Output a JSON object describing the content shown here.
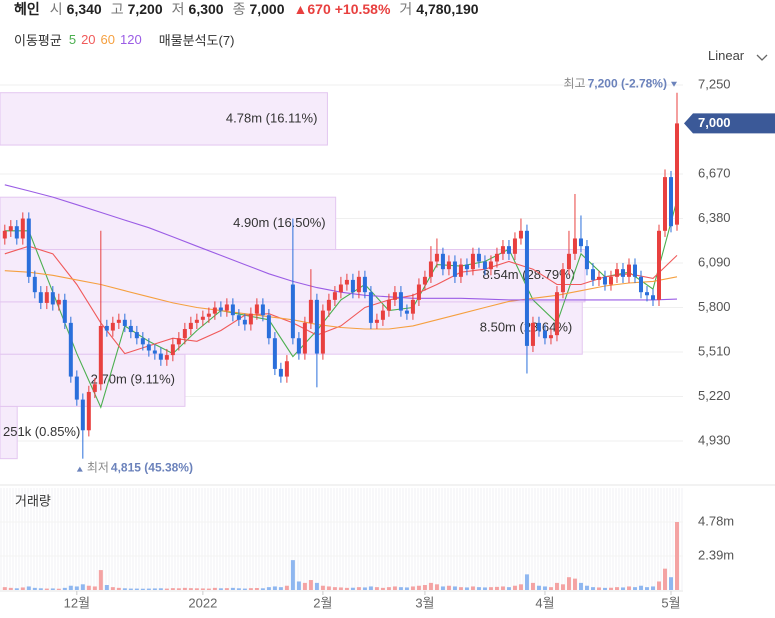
{
  "header": {
    "name": "헤인",
    "items": [
      {
        "label": "시",
        "value": "6,340"
      },
      {
        "label": "고",
        "value": "7,200"
      },
      {
        "label": "저",
        "value": "6,300"
      },
      {
        "label": "종",
        "value": "7,000"
      }
    ],
    "change": "▲670",
    "change_pct": "+10.58%",
    "volume_label": "거",
    "volume": "4,780,190"
  },
  "toolbar": {
    "scale": "Linear"
  },
  "chart_data": [
    {
      "type": "candlestick",
      "legend_title": "이동평균",
      "up_color": "#e8403f",
      "down_color": "#2a6fdb",
      "xlim": [
        -0.8,
        113
      ],
      "ylim": [
        4676,
        7348
      ],
      "yticks": [
        {
          "value": 4930,
          "label": "4,930"
        },
        {
          "value": 5220,
          "label": "5,220"
        },
        {
          "value": 5510,
          "label": "5,510"
        },
        {
          "value": 5800,
          "label": "5,800"
        },
        {
          "value": 6090,
          "label": "6,090"
        },
        {
          "value": 6380,
          "label": "6,380"
        },
        {
          "value": 6670,
          "label": "6,670"
        },
        {
          "value": 7250,
          "label": "7,250"
        }
      ],
      "grid": true,
      "open": [
        6250,
        6300,
        6330,
        6250,
        6380,
        6000,
        5900,
        5830,
        5900,
        5820,
        5850,
        5700,
        5350,
        5200,
        5000,
        5250,
        5300,
        5680,
        5650,
        5700,
        5720,
        5680,
        5640,
        5600,
        5560,
        5520,
        5500,
        5460,
        5490,
        5560,
        5600,
        5660,
        5700,
        5720,
        5740,
        5760,
        5800,
        5780,
        5820,
        5750,
        5720,
        5690,
        5760,
        5820,
        5750,
        5600,
        5400,
        5350,
        5950,
        5600,
        5500,
        5700,
        5850,
        5500,
        5780,
        5850,
        5900,
        5950,
        5980,
        5900,
        6000,
        5900,
        5700,
        5720,
        5780,
        5850,
        5900,
        5780,
        5760,
        5850,
        5950,
        6000,
        6100,
        6150,
        6050,
        6100,
        6000,
        6080,
        6050,
        6150,
        6100,
        6050,
        6100,
        6150,
        6200,
        6150,
        6250,
        6300,
        5550,
        5700,
        5650,
        5600,
        5620,
        5900,
        6050,
        6150,
        6250,
        6200,
        6050,
        5980,
        6000,
        5950,
        6000,
        6050,
        6000,
        6080,
        6000,
        5900,
        5880,
        5850,
        6300,
        6650,
        6340
      ],
      "high": [
        6340,
        6370,
        6370,
        6420,
        6420,
        6040,
        5940,
        5940,
        5940,
        5890,
        5890,
        5740,
        5390,
        5240,
        5290,
        5340,
        6300,
        5720,
        5740,
        5760,
        5760,
        5720,
        5680,
        5640,
        5600,
        5560,
        5540,
        5530,
        5600,
        5640,
        5700,
        5740,
        5760,
        5780,
        5800,
        5840,
        5840,
        5860,
        5860,
        5790,
        5760,
        5800,
        5860,
        5860,
        5790,
        5640,
        5440,
        5490,
        6380,
        5640,
        5740,
        6050,
        5890,
        5820,
        5890,
        5940,
        6000,
        6020,
        6020,
        6040,
        6040,
        5940,
        5760,
        5820,
        5890,
        5940,
        5940,
        5820,
        5890,
        5990,
        6040,
        6200,
        6250,
        6190,
        6140,
        6140,
        6120,
        6120,
        6190,
        6190,
        6140,
        6140,
        6190,
        6240,
        6240,
        6290,
        6380,
        6340,
        5740,
        5740,
        5690,
        5660,
        5940,
        6090,
        6300,
        6540,
        6400,
        6240,
        6090,
        6040,
        6040,
        6040,
        6090,
        6090,
        6120,
        6120,
        6040,
        5940,
        5920,
        6340,
        6700,
        6690,
        7200
      ],
      "low": [
        6210,
        6260,
        6210,
        6210,
        5960,
        5860,
        5790,
        5790,
        5780,
        5780,
        5660,
        5310,
        5160,
        4815,
        4960,
        5210,
        5260,
        5610,
        5610,
        5660,
        5640,
        5600,
        5560,
        5520,
        5480,
        5460,
        5420,
        5420,
        5450,
        5520,
        5560,
        5620,
        5660,
        5680,
        5700,
        5720,
        5740,
        5740,
        5710,
        5680,
        5650,
        5650,
        5720,
        5710,
        5560,
        5360,
        5310,
        5310,
        5560,
        5460,
        5460,
        5660,
        5280,
        5460,
        5740,
        5810,
        5860,
        5910,
        5860,
        5860,
        5860,
        5660,
        5660,
        5680,
        5740,
        5810,
        5740,
        5720,
        5720,
        5810,
        5910,
        5960,
        6060,
        6010,
        6010,
        5960,
        5960,
        6010,
        6010,
        6060,
        6010,
        6010,
        6060,
        6110,
        6110,
        6110,
        6210,
        5370,
        5510,
        5610,
        5560,
        5560,
        5580,
        5860,
        6010,
        6110,
        6160,
        6010,
        5940,
        5940,
        5910,
        5910,
        5960,
        5960,
        5960,
        5960,
        5860,
        5840,
        5810,
        5810,
        6260,
        6290,
        6300
      ],
      "close": [
        6300,
        6330,
        6250,
        6380,
        6000,
        5900,
        5830,
        5900,
        5820,
        5850,
        5700,
        5350,
        5200,
        5000,
        5250,
        5300,
        5680,
        5650,
        5700,
        5720,
        5680,
        5640,
        5600,
        5560,
        5520,
        5500,
        5460,
        5490,
        5560,
        5600,
        5660,
        5700,
        5720,
        5740,
        5760,
        5800,
        5780,
        5820,
        5750,
        5720,
        5690,
        5760,
        5820,
        5750,
        5600,
        5400,
        5350,
        5450,
        5600,
        5500,
        5700,
        5850,
        5500,
        5780,
        5850,
        5900,
        5950,
        5980,
        5900,
        6000,
        5900,
        5700,
        5720,
        5780,
        5850,
        5900,
        5780,
        5760,
        5850,
        5950,
        6000,
        6100,
        6150,
        6050,
        6100,
        6000,
        6080,
        6050,
        6150,
        6100,
        6050,
        6100,
        6150,
        6200,
        6150,
        6250,
        6300,
        5550,
        5700,
        5650,
        5600,
        5620,
        5900,
        6050,
        6150,
        6250,
        6200,
        6050,
        5980,
        6000,
        5950,
        6000,
        6050,
        6000,
        6080,
        6000,
        5900,
        5880,
        5850,
        6300,
        6650,
        6330,
        7000
      ],
      "series": [
        {
          "name": "5",
          "color": "#4caf50",
          "x": [
            0,
            4,
            8,
            12,
            16,
            20,
            24,
            28,
            32,
            36,
            40,
            44,
            48,
            52,
            56,
            60,
            64,
            68,
            72,
            76,
            80,
            84,
            88,
            92,
            96,
            100,
            104,
            108,
            112
          ],
          "values": [
            6300,
            6300,
            5900,
            5500,
            5150,
            5680,
            5580,
            5500,
            5650,
            5780,
            5750,
            5720,
            5480,
            5650,
            5850,
            5950,
            5780,
            5800,
            6080,
            6070,
            6100,
            6180,
            5850,
            5700,
            6150,
            6000,
            6030,
            5920,
            6500
          ]
        },
        {
          "name": "20",
          "color": "#f05a5a",
          "x": [
            0,
            4,
            8,
            12,
            16,
            20,
            24,
            28,
            32,
            36,
            40,
            44,
            48,
            52,
            56,
            60,
            64,
            68,
            72,
            76,
            80,
            84,
            88,
            92,
            96,
            100,
            104,
            108,
            112
          ],
          "values": [
            6150,
            6200,
            6150,
            5950,
            5700,
            5500,
            5550,
            5600,
            5580,
            5650,
            5750,
            5760,
            5700,
            5620,
            5680,
            5800,
            5850,
            5880,
            5950,
            6030,
            6050,
            6100,
            6050,
            5950,
            5950,
            6000,
            6020,
            5990,
            6140
          ]
        },
        {
          "name": "60",
          "color": "#f5a040",
          "x": [
            0,
            4,
            8,
            12,
            16,
            20,
            24,
            28,
            32,
            36,
            40,
            44,
            48,
            52,
            56,
            60,
            64,
            68,
            72,
            76,
            80,
            84,
            88,
            92,
            96,
            100,
            104,
            108,
            112
          ],
          "values": [
            6040,
            6030,
            6010,
            5980,
            5950,
            5910,
            5870,
            5830,
            5800,
            5780,
            5760,
            5740,
            5720,
            5690,
            5670,
            5660,
            5660,
            5680,
            5720,
            5760,
            5800,
            5840,
            5860,
            5880,
            5910,
            5940,
            5960,
            5970,
            6000
          ]
        },
        {
          "name": "120",
          "color": "#9b5de5",
          "x": [
            0,
            4,
            8,
            12,
            16,
            20,
            24,
            28,
            32,
            36,
            40,
            44,
            48,
            52,
            56,
            60,
            64,
            68,
            72,
            76,
            80,
            84,
            88,
            92,
            96,
            100,
            104,
            108,
            112
          ],
          "values": [
            6600,
            6560,
            6520,
            6470,
            6420,
            6370,
            6320,
            6260,
            6200,
            6140,
            6080,
            6020,
            5970,
            5930,
            5900,
            5880,
            5870,
            5860,
            5860,
            5860,
            5855,
            5850,
            5850,
            5850,
            5850,
            5850,
            5850,
            5850,
            5855
          ]
        }
      ],
      "volume_profile": {
        "name": "매물분석도(7)",
        "color": "#f6ebfb",
        "border": "#e3c6f0",
        "bins": [
          4815,
          5156,
          5496,
          5837,
          6178,
          6519,
          6859,
          7200
        ],
        "values": [
          251000,
          2700000,
          8500000,
          8540000,
          4900000,
          0,
          4780000
        ],
        "value_labels": [
          "251k (0.85%)",
          "2.70m (9.11%)",
          "8.50m (28.64%)",
          "8.54m (28.79%)",
          "4.90m (16.50%)",
          null,
          "4.78m (16.11%)"
        ]
      },
      "annotations": [
        {
          "prefix": "최고",
          "label": "7,200 (-2.78%)",
          "x": 112,
          "y": 7200,
          "position": "above"
        },
        {
          "prefix": "최저",
          "label": "4,815 (45.38%)",
          "x": 13,
          "y": 4815,
          "position": "below"
        }
      ],
      "last_price": {
        "value": 7000,
        "label": "7,000",
        "color": "#3b5998"
      }
    },
    {
      "type": "volume",
      "title": "거래량",
      "up_color": "#f4a3a3",
      "down_color": "#8fb7f0",
      "xlim": [
        -0.8,
        113
      ],
      "ylim": [
        0,
        7030000
      ],
      "yticks": [
        {
          "value": 2390000,
          "label": "2.39m"
        },
        {
          "value": 4780000,
          "label": "4.78m"
        }
      ],
      "xticks": [
        {
          "value": 12,
          "label": "12월"
        },
        {
          "value": 33,
          "label": "2022"
        },
        {
          "value": 53,
          "label": "2월"
        },
        {
          "value": 70,
          "label": "3월"
        },
        {
          "value": 90,
          "label": "4월"
        },
        {
          "value": 111,
          "label": "5월"
        }
      ],
      "grid": true,
      "values": [
        200000,
        150000,
        120000,
        180000,
        250000,
        150000,
        120000,
        100000,
        110000,
        90000,
        150000,
        300000,
        250000,
        400000,
        300000,
        250000,
        1400000,
        350000,
        200000,
        150000,
        120000,
        100000,
        100000,
        90000,
        100000,
        110000,
        120000,
        100000,
        130000,
        120000,
        150000,
        130000,
        120000,
        110000,
        100000,
        150000,
        120000,
        130000,
        150000,
        120000,
        100000,
        130000,
        140000,
        120000,
        200000,
        250000,
        200000,
        300000,
        2100000,
        600000,
        500000,
        700000,
        500000,
        300000,
        250000,
        200000,
        180000,
        150000,
        160000,
        200000,
        180000,
        250000,
        200000,
        150000,
        200000,
        250000,
        200000,
        180000,
        250000,
        300000,
        350000,
        500000,
        400000,
        250000,
        300000,
        250000,
        200000,
        180000,
        250000,
        200000,
        180000,
        200000,
        220000,
        250000,
        200000,
        300000,
        400000,
        1100000,
        500000,
        300000,
        250000,
        200000,
        500000,
        400000,
        900000,
        800000,
        500000,
        300000,
        200000,
        180000,
        150000,
        160000,
        200000,
        180000,
        250000,
        200000,
        300000,
        200000,
        250000,
        600000,
        1500000,
        900000,
        4780190
      ]
    }
  ]
}
